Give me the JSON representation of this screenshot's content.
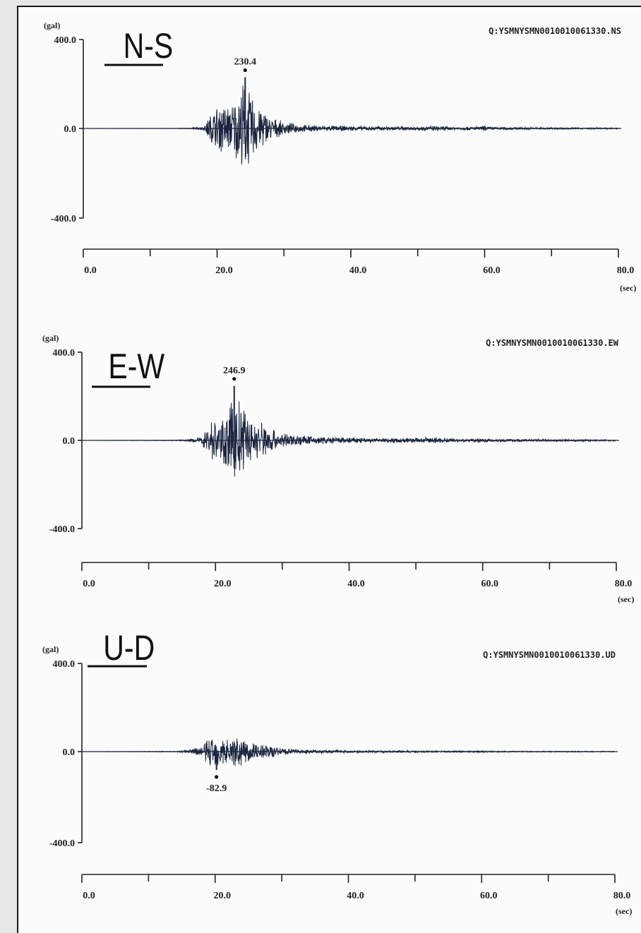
{
  "colors": {
    "paper": "#fbfbfb",
    "ink": "#222222",
    "trace": "#1b2540"
  },
  "chart_data": [
    {
      "type": "line",
      "title": "N-S",
      "record_id": "Q:YSMNYSMN0010010061330.NS",
      "yunit": "(gal)",
      "xunit": "(sec)",
      "ylim": [
        -400.0,
        400.0
      ],
      "xlim": [
        0.0,
        80.0
      ],
      "yticks": [
        "400.0",
        "0.0",
        "-400.0"
      ],
      "xticks": [
        "0.0",
        "20.0",
        "40.0",
        "60.0",
        "80.0"
      ],
      "peak": {
        "x": 24.2,
        "y": 230.4,
        "label": "230.4"
      },
      "envelope": [
        [
          0,
          0
        ],
        [
          14,
          1
        ],
        [
          16,
          3
        ],
        [
          18,
          10
        ],
        [
          19,
          70
        ],
        [
          20,
          110
        ],
        [
          21,
          130
        ],
        [
          22,
          110
        ],
        [
          23,
          160
        ],
        [
          24,
          230
        ],
        [
          25,
          170
        ],
        [
          26,
          120
        ],
        [
          27,
          90
        ],
        [
          28,
          55
        ],
        [
          30,
          30
        ],
        [
          33,
          18
        ],
        [
          36,
          14
        ],
        [
          40,
          12
        ],
        [
          45,
          10
        ],
        [
          50,
          10
        ],
        [
          53,
          12
        ],
        [
          55,
          8
        ],
        [
          60,
          10
        ],
        [
          65,
          6
        ],
        [
          70,
          5
        ],
        [
          75,
          4
        ],
        [
          80,
          3
        ]
      ],
      "spikes": [
        [
          52,
          14
        ],
        [
          60,
          18
        ]
      ]
    },
    {
      "type": "line",
      "title": "E-W",
      "record_id": "Q:YSMNYSMN0010010061330.EW",
      "yunit": "(gal)",
      "xunit": "(sec)",
      "ylim": [
        -400.0,
        400.0
      ],
      "xlim": [
        0.0,
        80.0
      ],
      "yticks": [
        "400.0",
        "0.0",
        "-400.0"
      ],
      "xticks": [
        "0.0",
        "20.0",
        "40.0",
        "60.0",
        "80.0"
      ],
      "peak": {
        "x": 22.8,
        "y": 246.9,
        "label": "246.9"
      },
      "envelope": [
        [
          0,
          0
        ],
        [
          14,
          2
        ],
        [
          16,
          5
        ],
        [
          18,
          20
        ],
        [
          19,
          90
        ],
        [
          20,
          110
        ],
        [
          21,
          100
        ],
        [
          22,
          150
        ],
        [
          23,
          247
        ],
        [
          24,
          180
        ],
        [
          25,
          120
        ],
        [
          26,
          90
        ],
        [
          27,
          100
        ],
        [
          28,
          70
        ],
        [
          30,
          35
        ],
        [
          33,
          25
        ],
        [
          36,
          18
        ],
        [
          40,
          15
        ],
        [
          45,
          12
        ],
        [
          50,
          12
        ],
        [
          52,
          16
        ],
        [
          55,
          10
        ],
        [
          60,
          8
        ],
        [
          65,
          7
        ],
        [
          70,
          6
        ],
        [
          75,
          5
        ],
        [
          80,
          4
        ]
      ],
      "spikes": [
        [
          52,
          18
        ],
        [
          59.5,
          12
        ]
      ]
    },
    {
      "type": "line",
      "title": "U-D",
      "record_id": "Q:YSMNYSMN0010010061330.UD",
      "yunit": "(gal)",
      "xunit": "(sec)",
      "ylim": [
        -400.0,
        400.0
      ],
      "xlim": [
        0.0,
        80.0
      ],
      "yticks": [
        "400.0",
        "0.0",
        "-400.0"
      ],
      "xticks": [
        "0.0",
        "20.0",
        "40.0",
        "60.0",
        "80.0"
      ],
      "peak": {
        "x": 20.2,
        "y": -82.9,
        "label": "-82.9"
      },
      "envelope": [
        [
          0,
          0
        ],
        [
          14,
          2
        ],
        [
          16,
          8
        ],
        [
          18,
          30
        ],
        [
          19,
          70
        ],
        [
          20,
          80
        ],
        [
          21,
          75
        ],
        [
          22,
          65
        ],
        [
          23,
          75
        ],
        [
          24,
          70
        ],
        [
          25,
          55
        ],
        [
          26,
          45
        ],
        [
          28,
          35
        ],
        [
          30,
          18
        ],
        [
          33,
          10
        ],
        [
          36,
          8
        ],
        [
          40,
          6
        ],
        [
          45,
          5
        ],
        [
          50,
          5
        ],
        [
          55,
          4
        ],
        [
          60,
          4
        ],
        [
          65,
          3
        ],
        [
          70,
          3
        ],
        [
          75,
          3
        ],
        [
          80,
          2
        ]
      ],
      "spikes": []
    }
  ]
}
